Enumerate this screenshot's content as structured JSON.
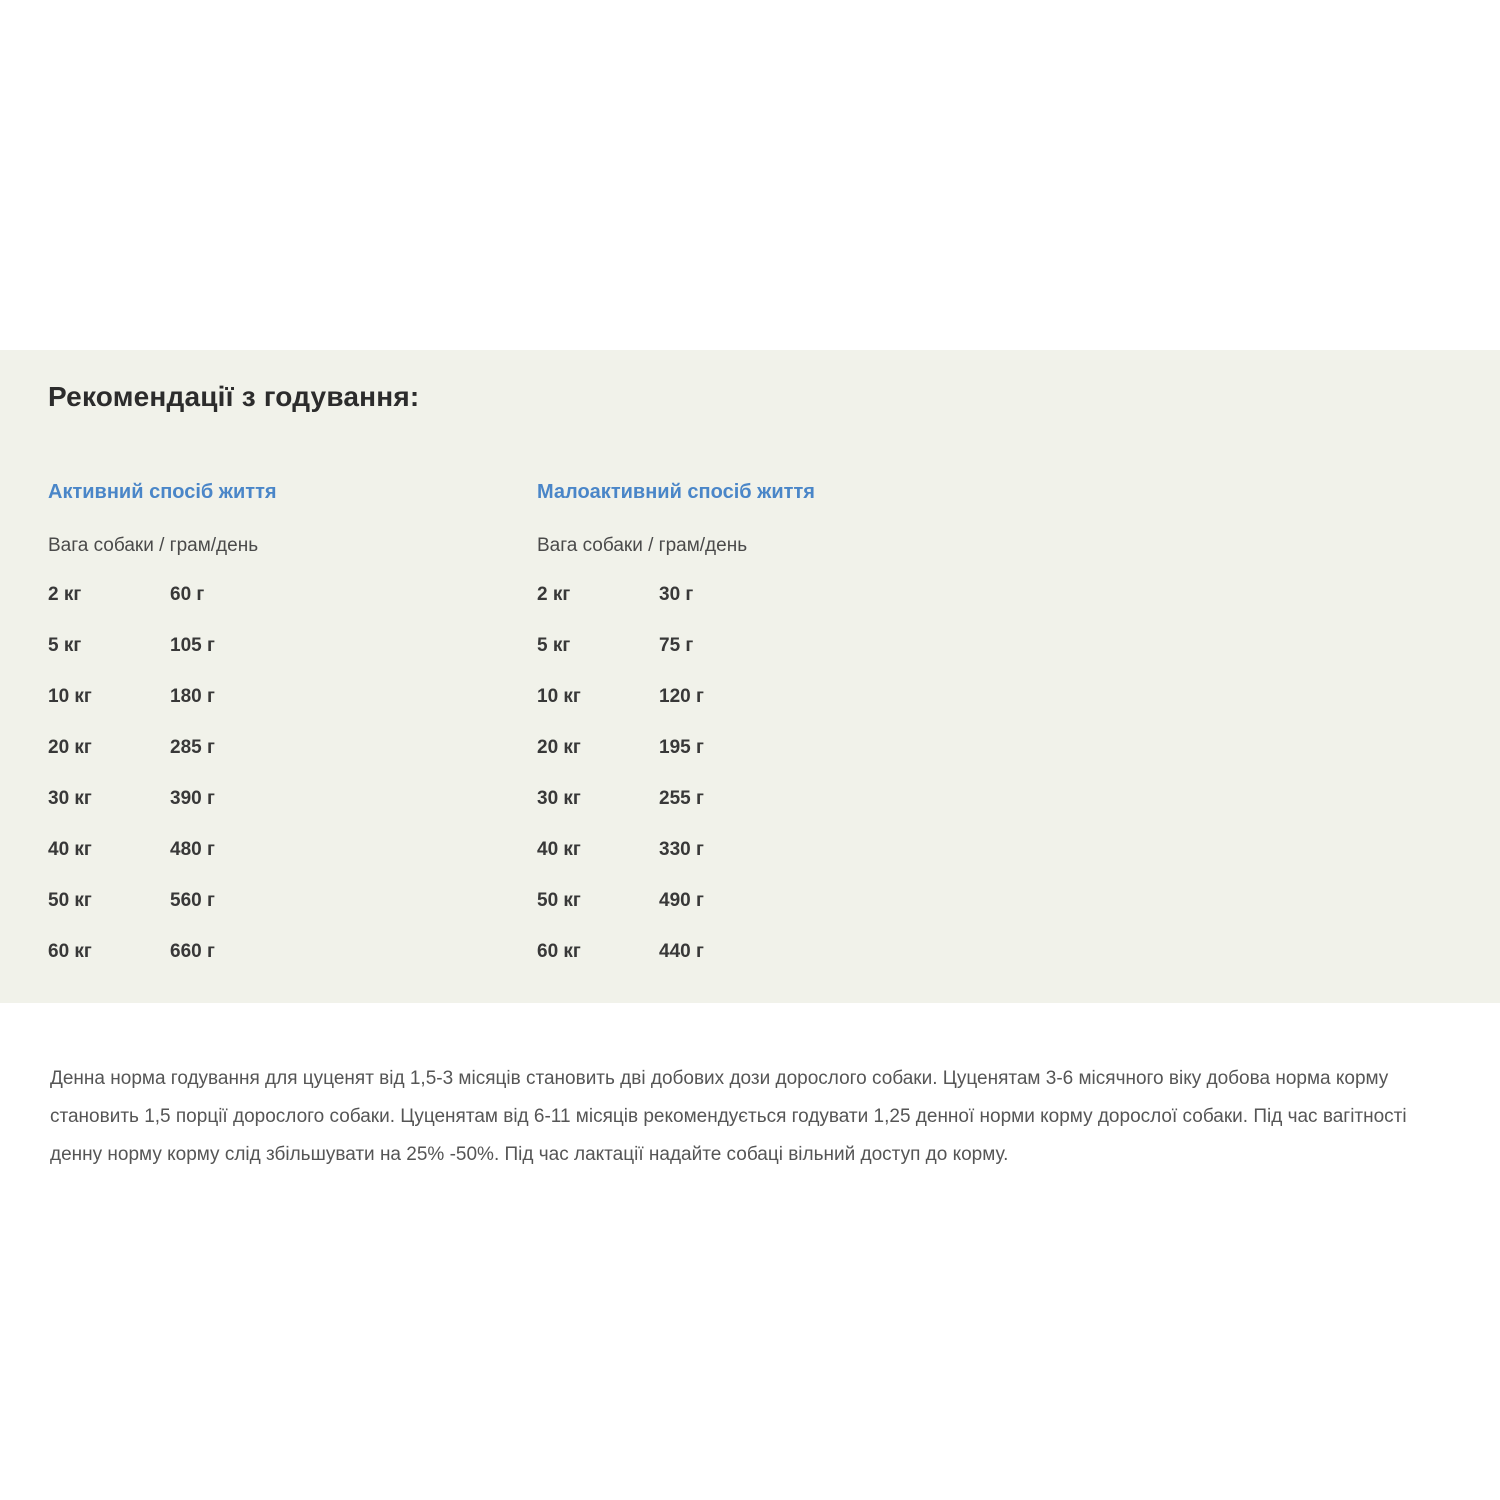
{
  "section": {
    "title": "Рекомендації з годування:",
    "columns": [
      {
        "header": "Активний спосіб життя",
        "subheader": "Вага собаки / грам/день",
        "rows": [
          {
            "weight": "2 кг",
            "amount": "60 г"
          },
          {
            "weight": "5 кг",
            "amount": "105 г"
          },
          {
            "weight": "10 кг",
            "amount": "180 г"
          },
          {
            "weight": "20 кг",
            "amount": "285 г"
          },
          {
            "weight": "30 кг",
            "amount": "390 г"
          },
          {
            "weight": "40 кг",
            "amount": "480 г"
          },
          {
            "weight": "50 кг",
            "amount": "560 г"
          },
          {
            "weight": "60 кг",
            "amount": "660 г"
          }
        ]
      },
      {
        "header": "Малоактивний спосіб життя",
        "subheader": "Вага собаки / грам/день",
        "rows": [
          {
            "weight": "2 кг",
            "amount": "30 г"
          },
          {
            "weight": "5 кг",
            "amount": "75 г"
          },
          {
            "weight": "10 кг",
            "amount": "120 г"
          },
          {
            "weight": "20 кг",
            "amount": "195 г"
          },
          {
            "weight": "30 кг",
            "amount": "255 г"
          },
          {
            "weight": "40 кг",
            "amount": "330 г"
          },
          {
            "weight": "50 кг",
            "amount": "490 г"
          },
          {
            "weight": "60 кг",
            "amount": "440 г"
          }
        ]
      }
    ],
    "note": "Денна норма годування для цуценят від 1,5-3 місяців становить дві добових дози дорослого собаки. Цуценятам 3-6 місячного віку добова норма корму становить 1,5 порції дорослого собаки. Цуценятам від 6-11 місяців рекомендується годувати 1,25 денної норми корму дорослої собаки. Під час вагітності денну норму корму слід збільшувати на 25% -50%. Під час лактації надайте собаці вільний доступ до корму."
  },
  "colors": {
    "band_background": "#f1f2ea",
    "accent_blue": "#4a86c8",
    "title_dark": "#2c2c2c",
    "body_gray": "#555555"
  }
}
